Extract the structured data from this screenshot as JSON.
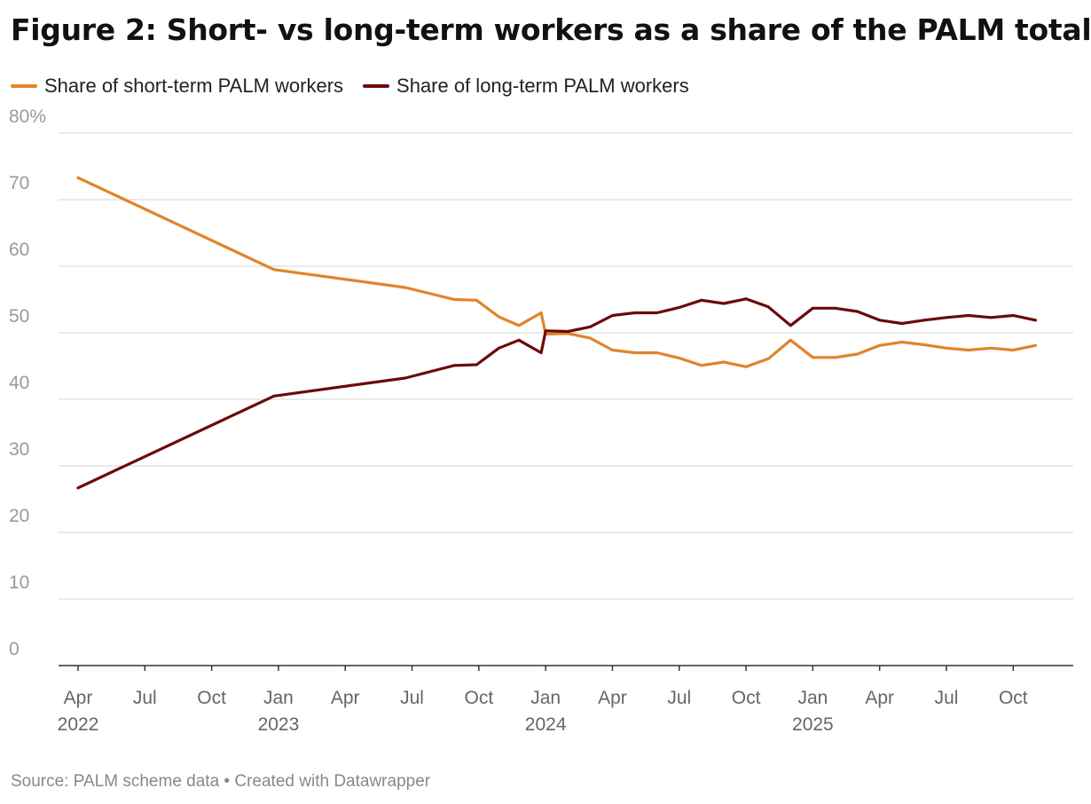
{
  "title": "Figure 2: Short- vs long-term workers as a share of the PALM total",
  "legend": [
    {
      "label": "Share of short-term PALM workers",
      "color": "#e0842a"
    },
    {
      "label": "Share of long-term PALM workers",
      "color": "#6b0a0a"
    }
  ],
  "footer": {
    "source": "Source: PALM scheme data",
    "separator": " • ",
    "credit": "Created with Datawrapper"
  },
  "chart_data": {
    "type": "line",
    "title": "Figure 2: Short- vs long-term workers as a share of the PALM total",
    "xlabel": "",
    "ylabel": "",
    "ylim": [
      0,
      80
    ],
    "yticks": [
      {
        "value": 0,
        "label": "0"
      },
      {
        "value": 10,
        "label": "10"
      },
      {
        "value": 20,
        "label": "20"
      },
      {
        "value": 30,
        "label": "30"
      },
      {
        "value": 40,
        "label": "40"
      },
      {
        "value": 50,
        "label": "50"
      },
      {
        "value": 60,
        "label": "60"
      },
      {
        "value": 70,
        "label": "70"
      },
      {
        "value": 80,
        "label": "80%"
      }
    ],
    "xticks": [
      {
        "month": 3,
        "label": "Apr",
        "year_label": "2022"
      },
      {
        "month": 6,
        "label": "Jul"
      },
      {
        "month": 9,
        "label": "Oct"
      },
      {
        "month": 12,
        "label": "Jan",
        "year_label": "2023"
      },
      {
        "month": 15,
        "label": "Apr"
      },
      {
        "month": 18,
        "label": "Jul"
      },
      {
        "month": 21,
        "label": "Oct"
      },
      {
        "month": 24,
        "label": "Jan",
        "year_label": "2024"
      },
      {
        "month": 27,
        "label": "Apr"
      },
      {
        "month": 30,
        "label": "Jul"
      },
      {
        "month": 33,
        "label": "Oct"
      },
      {
        "month": 36,
        "label": "Jan",
        "year_label": "2025"
      },
      {
        "month": 39,
        "label": "Apr"
      },
      {
        "month": 42,
        "label": "Jul"
      },
      {
        "month": 45,
        "label": "Oct"
      }
    ],
    "x_domain_months": [
      3,
      46.9
    ],
    "x_note": "month = months since Jan 2022 (0 = Jan 2022)",
    "series": [
      {
        "name": "Share of short-term PALM workers",
        "color": "#e0842a",
        "x": [
          3,
          11.8,
          17.7,
          19.9,
          20.9,
          21.9,
          22.8,
          23.8,
          24,
          25,
          26,
          27,
          28,
          29,
          30,
          31,
          32,
          33,
          34,
          35,
          36,
          37,
          38,
          39,
          40,
          41,
          42,
          43,
          44,
          45,
          46
        ],
        "values": [
          73.3,
          59.5,
          56.8,
          55.0,
          54.9,
          52.4,
          51.1,
          53.0,
          49.8,
          49.9,
          49.2,
          47.4,
          47.0,
          47.0,
          46.2,
          45.1,
          45.6,
          44.9,
          46.1,
          48.9,
          46.3,
          46.3,
          46.8,
          48.1,
          48.6,
          48.2,
          47.7,
          47.4,
          47.7,
          47.4,
          48.1
        ]
      },
      {
        "name": "Share of long-term PALM workers",
        "color": "#6b0a0a",
        "x": [
          3,
          11.8,
          17.7,
          19.9,
          20.9,
          21.9,
          22.8,
          23.8,
          24,
          25,
          26,
          27,
          28,
          29,
          30,
          31,
          32,
          33,
          34,
          35,
          36,
          37,
          38,
          39,
          40,
          41,
          42,
          43,
          44,
          45,
          46
        ],
        "values": [
          26.7,
          40.5,
          43.2,
          45.1,
          45.2,
          47.7,
          48.9,
          47.0,
          50.3,
          50.2,
          50.9,
          52.6,
          53.0,
          53.0,
          53.8,
          54.9,
          54.4,
          55.1,
          53.9,
          51.1,
          53.7,
          53.7,
          53.2,
          51.9,
          51.4,
          51.9,
          52.3,
          52.6,
          52.3,
          52.6,
          51.9
        ]
      }
    ]
  }
}
